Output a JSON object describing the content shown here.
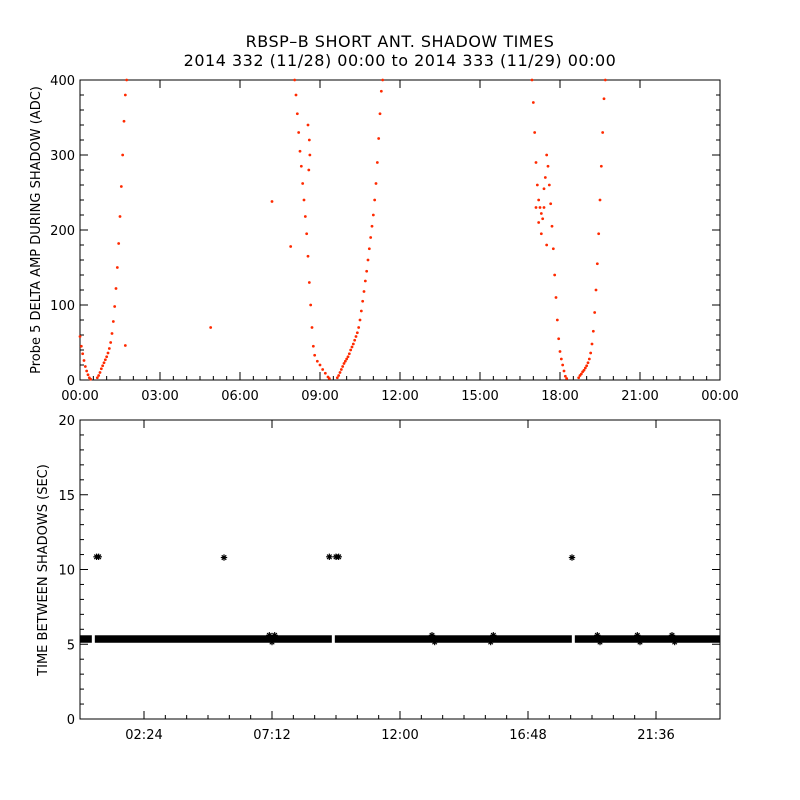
{
  "chart_data": [
    {
      "type": "scatter",
      "title": "RBSP–B SHORT ANT. SHADOW TIMES",
      "subtitle": "2014 332 (11/28) 00:00 to 2014 333 (11/29) 00:00",
      "xlabel": "",
      "ylabel": "Probe 5 DELTA AMP DURING SHADOW (ADC)",
      "x_unit": "hours",
      "xlim": [
        0,
        24
      ],
      "ylim": [
        0,
        400
      ],
      "x_ticks": [
        0,
        3,
        6,
        9,
        12,
        15,
        18,
        21,
        24
      ],
      "x_tick_labels": [
        "00:00",
        "03:00",
        "06:00",
        "09:00",
        "12:00",
        "15:00",
        "18:00",
        "21:00",
        "00:00"
      ],
      "y_ticks": [
        0,
        100,
        200,
        300,
        400
      ],
      "y_tick_labels": [
        "0",
        "100",
        "200",
        "300",
        "400"
      ],
      "color": "#ff2a00",
      "grid": false,
      "series": [
        {
          "points": [
            [
              0.0,
              58
            ],
            [
              0.05,
              45
            ],
            [
              0.1,
              35
            ],
            [
              0.15,
              26
            ],
            [
              0.2,
              18
            ],
            [
              0.25,
              12
            ],
            [
              0.3,
              7
            ],
            [
              0.35,
              3
            ],
            [
              0.4,
              1
            ],
            [
              0.65,
              3
            ],
            [
              0.7,
              6
            ],
            [
              0.75,
              10
            ],
            [
              0.8,
              15
            ],
            [
              0.85,
              19
            ],
            [
              0.9,
              23
            ],
            [
              0.95,
              27
            ],
            [
              1.0,
              31
            ],
            [
              1.05,
              36
            ],
            [
              1.1,
              42
            ],
            [
              1.15,
              50
            ],
            [
              1.2,
              62
            ],
            [
              1.25,
              78
            ],
            [
              1.3,
              98
            ],
            [
              1.35,
              122
            ],
            [
              1.4,
              150
            ],
            [
              1.45,
              182
            ],
            [
              1.5,
              218
            ],
            [
              1.55,
              258
            ],
            [
              1.6,
              300
            ],
            [
              1.65,
              345
            ],
            [
              1.7,
              380
            ],
            [
              1.75,
              405
            ],
            [
              1.7,
              46
            ],
            [
              4.9,
              70
            ],
            [
              7.2,
              238
            ],
            [
              7.9,
              178
            ],
            [
              8.05,
              405
            ],
            [
              8.1,
              380
            ],
            [
              8.15,
              355
            ],
            [
              8.2,
              330
            ],
            [
              8.25,
              305
            ],
            [
              8.3,
              285
            ],
            [
              8.35,
              262
            ],
            [
              8.4,
              240
            ],
            [
              8.45,
              218
            ],
            [
              8.5,
              195
            ],
            [
              8.55,
              165
            ],
            [
              8.6,
              130
            ],
            [
              8.65,
              100
            ],
            [
              8.7,
              70
            ],
            [
              8.75,
              45
            ],
            [
              8.8,
              33
            ],
            [
              8.9,
              25
            ],
            [
              9.0,
              20
            ],
            [
              9.1,
              14
            ],
            [
              9.2,
              9
            ],
            [
              9.3,
              4
            ],
            [
              9.35,
              2
            ],
            [
              8.55,
              340
            ],
            [
              8.6,
              320
            ],
            [
              8.62,
              300
            ],
            [
              8.58,
              280
            ],
            [
              9.65,
              3
            ],
            [
              9.7,
              6
            ],
            [
              9.75,
              10
            ],
            [
              9.8,
              14
            ],
            [
              9.85,
              18
            ],
            [
              9.9,
              22
            ],
            [
              9.95,
              25
            ],
            [
              10.0,
              28
            ],
            [
              10.05,
              31
            ],
            [
              10.1,
              35
            ],
            [
              10.15,
              40
            ],
            [
              10.2,
              44
            ],
            [
              10.25,
              48
            ],
            [
              10.3,
              53
            ],
            [
              10.35,
              58
            ],
            [
              10.4,
              63
            ],
            [
              10.45,
              70
            ],
            [
              10.5,
              80
            ],
            [
              10.55,
              92
            ],
            [
              10.6,
              105
            ],
            [
              10.65,
              118
            ],
            [
              10.7,
              132
            ],
            [
              10.75,
              145
            ],
            [
              10.8,
              160
            ],
            [
              10.85,
              175
            ],
            [
              10.9,
              190
            ],
            [
              10.95,
              205
            ],
            [
              11.0,
              220
            ],
            [
              11.05,
              240
            ],
            [
              11.1,
              262
            ],
            [
              11.15,
              290
            ],
            [
              11.2,
              322
            ],
            [
              11.25,
              355
            ],
            [
              11.3,
              385
            ],
            [
              11.35,
              405
            ],
            [
              16.95,
              405
            ],
            [
              17.0,
              370
            ],
            [
              17.05,
              330
            ],
            [
              17.1,
              290
            ],
            [
              17.15,
              260
            ],
            [
              17.2,
              240
            ],
            [
              17.25,
              230
            ],
            [
              17.3,
              222
            ],
            [
              17.35,
              215
            ],
            [
              17.4,
              230
            ],
            [
              17.45,
              270
            ],
            [
              17.5,
              300
            ],
            [
              17.55,
              285
            ],
            [
              17.6,
              260
            ],
            [
              17.65,
              235
            ],
            [
              17.7,
              205
            ],
            [
              17.75,
              175
            ],
            [
              17.8,
              140
            ],
            [
              17.85,
              110
            ],
            [
              17.9,
              80
            ],
            [
              17.95,
              55
            ],
            [
              18.0,
              38
            ],
            [
              18.05,
              28
            ],
            [
              18.1,
              20
            ],
            [
              18.15,
              12
            ],
            [
              18.2,
              5
            ],
            [
              18.25,
              2
            ],
            [
              17.1,
              230
            ],
            [
              17.2,
              210
            ],
            [
              17.3,
              195
            ],
            [
              17.5,
              180
            ],
            [
              17.4,
              255
            ],
            [
              18.7,
              3
            ],
            [
              18.75,
              6
            ],
            [
              18.8,
              8
            ],
            [
              18.85,
              11
            ],
            [
              18.9,
              13
            ],
            [
              18.95,
              16
            ],
            [
              19.0,
              19
            ],
            [
              19.05,
              23
            ],
            [
              19.1,
              28
            ],
            [
              19.15,
              36
            ],
            [
              19.2,
              48
            ],
            [
              19.25,
              65
            ],
            [
              19.3,
              90
            ],
            [
              19.35,
              120
            ],
            [
              19.4,
              155
            ],
            [
              19.45,
              195
            ],
            [
              19.5,
              240
            ],
            [
              19.55,
              285
            ],
            [
              19.6,
              330
            ],
            [
              19.65,
              375
            ],
            [
              19.7,
              405
            ]
          ]
        }
      ]
    },
    {
      "type": "scatter",
      "xlabel": "",
      "ylabel": "TIME BETWEEN SHADOWS (SEC)",
      "x_unit": "hours",
      "xlim": [
        0,
        24
      ],
      "ylim": [
        0,
        20
      ],
      "x_ticks": [
        2.4,
        7.2,
        12.0,
        16.8,
        21.6
      ],
      "x_tick_labels": [
        "02:24",
        "07:12",
        "12:00",
        "16:48",
        "21:36"
      ],
      "y_ticks": [
        0,
        5,
        10,
        15,
        20
      ],
      "y_tick_labels": [
        "0",
        "5",
        "10",
        "15",
        "20"
      ],
      "color": "#000000",
      "grid": false,
      "band": {
        "y_low": 5.1,
        "y_high": 5.6,
        "x_start": 0.0,
        "x_end": 24.0,
        "gaps": [
          0.5,
          9.5,
          18.5
        ]
      },
      "series": [
        {
          "points": [
            [
              0.62,
              10.85
            ],
            [
              0.7,
              10.85
            ],
            [
              5.4,
              10.8
            ],
            [
              9.35,
              10.85
            ],
            [
              9.6,
              10.85
            ],
            [
              9.7,
              10.85
            ],
            [
              18.45,
              10.8
            ],
            [
              7.1,
              5.6
            ],
            [
              7.3,
              5.6
            ],
            [
              13.2,
              5.6
            ],
            [
              15.5,
              5.6
            ],
            [
              19.4,
              5.6
            ],
            [
              20.9,
              5.6
            ],
            [
              22.2,
              5.6
            ],
            [
              7.2,
              5.15
            ],
            [
              13.3,
              5.15
            ],
            [
              15.4,
              5.15
            ],
            [
              19.5,
              5.15
            ],
            [
              21.0,
              5.15
            ],
            [
              22.3,
              5.15
            ]
          ]
        }
      ]
    }
  ]
}
